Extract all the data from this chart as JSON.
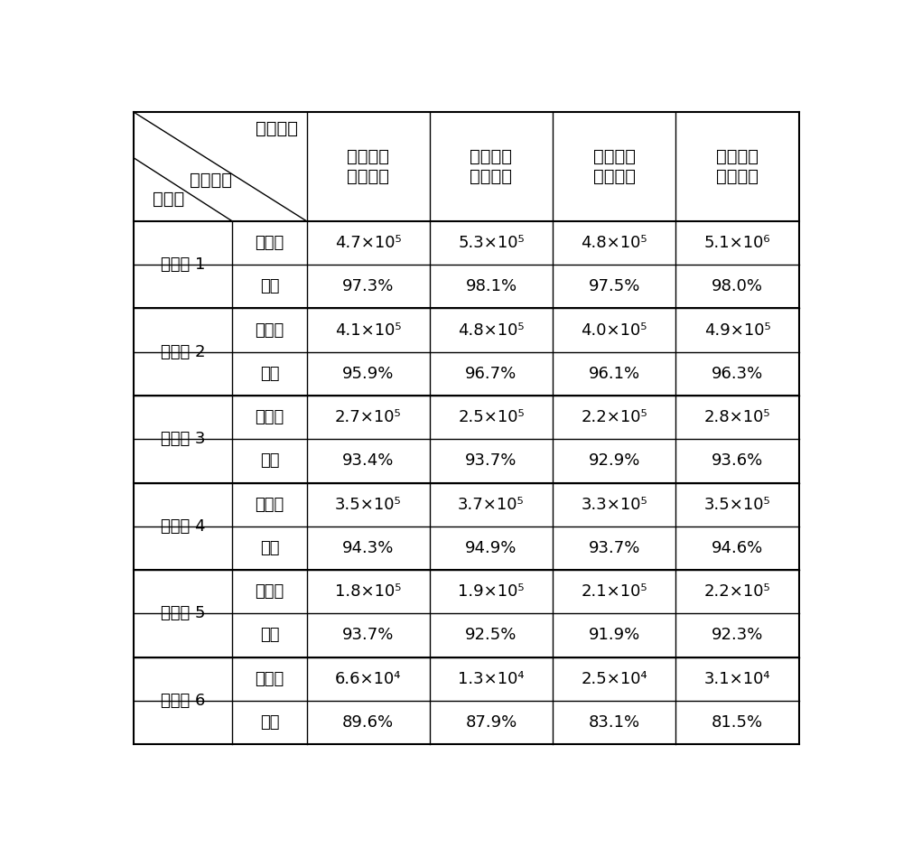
{
  "header_top_right": "细胞种类",
  "header_bottom_left": "培养基",
  "header_bottom_middle": "检测结果",
  "col_headers": [
    "牟髓间充\n质干细胞",
    "骨髓间充\n质干细胞",
    "脂带间充\n质干细胞",
    "脂肪间充\n质干细胞"
  ],
  "rows": [
    {
      "group": "实施例 1",
      "sub_rows": [
        {
          "label": "细胞数",
          "values": [
            "4.7×10⁵",
            "5.3×10⁵",
            "4.8×10⁵",
            "5.1×10⁶"
          ]
        },
        {
          "label": "活率",
          "values": [
            "97.3%",
            "98.1%",
            "97.5%",
            "98.0%"
          ]
        }
      ]
    },
    {
      "group": "实施例 2",
      "sub_rows": [
        {
          "label": "细胞数",
          "values": [
            "4.1×10⁵",
            "4.8×10⁵",
            "4.0×10⁵",
            "4.9×10⁵"
          ]
        },
        {
          "label": "活率",
          "values": [
            "95.9%",
            "96.7%",
            "96.1%",
            "96.3%"
          ]
        }
      ]
    },
    {
      "group": "实施例 3",
      "sub_rows": [
        {
          "label": "细胞数",
          "values": [
            "2.7×10⁵",
            "2.5×10⁵",
            "2.2×10⁵",
            "2.8×10⁵"
          ]
        },
        {
          "label": "活率",
          "values": [
            "93.4%",
            "93.7%",
            "92.9%",
            "93.6%"
          ]
        }
      ]
    },
    {
      "group": "实施例 4",
      "sub_rows": [
        {
          "label": "细胞数",
          "values": [
            "3.5×10⁵",
            "3.7×10⁵",
            "3.3×10⁵",
            "3.5×10⁵"
          ]
        },
        {
          "label": "活率",
          "values": [
            "94.3%",
            "94.9%",
            "93.7%",
            "94.6%"
          ]
        }
      ]
    },
    {
      "group": "实施例 5",
      "sub_rows": [
        {
          "label": "细胞数",
          "values": [
            "1.8×10⁵",
            "1.9×10⁵",
            "2.1×10⁵",
            "2.2×10⁵"
          ]
        },
        {
          "label": "活率",
          "values": [
            "93.7%",
            "92.5%",
            "91.9%",
            "92.3%"
          ]
        }
      ]
    },
    {
      "group": "实施例 6",
      "sub_rows": [
        {
          "label": "细胞数",
          "values": [
            "6.6×10⁴",
            "1.3×10⁴",
            "2.5×10⁴",
            "3.1×10⁴"
          ]
        },
        {
          "label": "活率",
          "values": [
            "89.6%",
            "87.9%",
            "83.1%",
            "81.5%"
          ]
        }
      ]
    }
  ],
  "background_color": "#ffffff",
  "line_color": "#000000",
  "font_size_header": 14,
  "font_size_data": 13,
  "font_size_group": 13
}
